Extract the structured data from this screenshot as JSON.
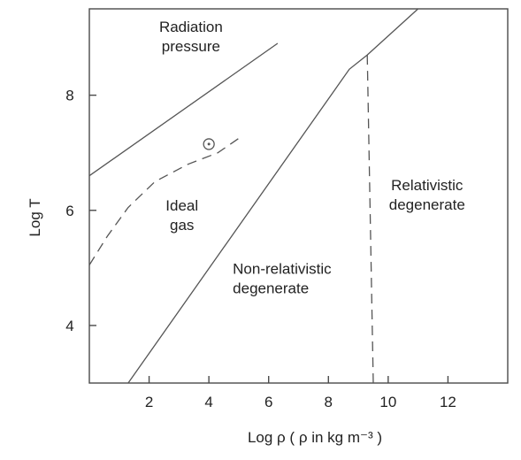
{
  "chart_data": {
    "type": "line",
    "title": "",
    "xlabel": "Log ρ ( ρ  in kg m⁻³ )",
    "ylabel": "Log T",
    "xlim": [
      0,
      14
    ],
    "ylim": [
      3,
      9.5
    ],
    "x_ticks": [
      "2",
      "4",
      "6",
      "8",
      "10",
      "12"
    ],
    "y_ticks": [
      "4",
      "6",
      "8"
    ],
    "grid": false,
    "legend": "none",
    "series": [
      {
        "style": "solid",
        "points": [
          [
            0,
            6.6
          ],
          [
            6.3,
            8.9
          ]
        ]
      },
      {
        "style": "solid",
        "points": [
          [
            1.3,
            3.0
          ],
          [
            8.7,
            8.45
          ],
          [
            9.3,
            8.7
          ],
          [
            11.0,
            9.5
          ]
        ]
      },
      {
        "style": "dashed",
        "points": [
          [
            0,
            5.05
          ],
          [
            0.6,
            5.55
          ],
          [
            1.3,
            6.05
          ],
          [
            2.2,
            6.5
          ],
          [
            3.3,
            6.8
          ],
          [
            4.3,
            7.0
          ],
          [
            5.0,
            7.25
          ]
        ]
      },
      {
        "style": "dashed",
        "points": [
          [
            9.3,
            8.7
          ],
          [
            9.5,
            3.0
          ]
        ]
      }
    ],
    "markers": [
      {
        "name": "sun-symbol",
        "x": 4.0,
        "y": 7.15
      }
    ],
    "annotations": [
      {
        "id": "radiation",
        "lines": [
          "Radiation",
          "pressure"
        ],
        "x": 3.4,
        "y": 9.1,
        "anchor": "middle"
      },
      {
        "id": "ideal",
        "lines": [
          "Ideal",
          "gas"
        ],
        "x": 3.1,
        "y": 6.0,
        "anchor": "middle"
      },
      {
        "id": "nonrel",
        "lines": [
          "Non-relativistic",
          "degenerate"
        ],
        "x": 4.8,
        "y": 4.9,
        "anchor": "start"
      },
      {
        "id": "rel",
        "lines": [
          "Relativistic",
          "degenerate"
        ],
        "x": 11.3,
        "y": 6.35,
        "anchor": "middle"
      }
    ]
  }
}
